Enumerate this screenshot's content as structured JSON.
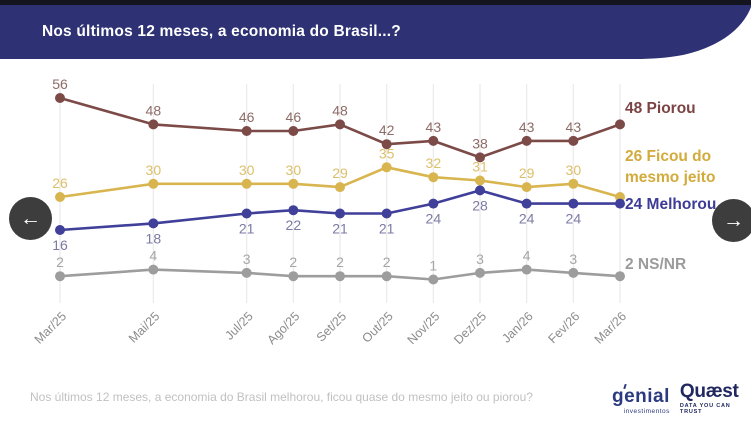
{
  "header": {
    "title": "Nos últimos 12 meses, a economia do Brasil...?"
  },
  "nav": {
    "prev_label": "←",
    "next_label": "→"
  },
  "footer": {
    "question": "Nos últimos 12 meses, a economia do Brasil melhorou, ficou quase do mesmo jeito ou piorou?",
    "logos": {
      "genial": {
        "name": "genial",
        "sub": "investimentos"
      },
      "quaest": {
        "name": "Quæst",
        "sub": "DATA YOU CAN TRUST"
      }
    }
  },
  "colors": {
    "banner": "#2e3274",
    "top_bar": "#14141f",
    "gridline": "#ececec",
    "axis_label": "#8c8c8c",
    "nav_button": "#3d3d3d",
    "footer_text": "#c1c1c1",
    "logo_navy": "#2c3a80"
  },
  "chart_data": {
    "type": "line",
    "title": "Nos últimos 12 meses, a economia do Brasil...?",
    "x_tick_labels": [
      "Mar/25",
      "Mai/25",
      "Jul/25",
      "Ago/25",
      "Set/25",
      "Out/25",
      "Nov/25",
      "Dez/25",
      "Jan/26",
      "Fev/26",
      "Mar/26"
    ],
    "x_month_offsets": [
      0,
      2,
      4,
      5,
      6,
      7,
      8,
      9,
      10,
      11,
      12
    ],
    "ylim": [
      0,
      60
    ],
    "grid": "vertical-only",
    "legend_position": "right-of-last-point",
    "series": [
      {
        "name": "Piorou",
        "color": "#7c4a47",
        "label_color": "#8d6b66",
        "legend_color": "#7b4343",
        "values": [
          56,
          48,
          46,
          46,
          48,
          42,
          43,
          38,
          43,
          43,
          48
        ],
        "value_label_position": "above",
        "legend_lines": [
          "48 Piorou"
        ]
      },
      {
        "name": "Ficou do mesmo jeito",
        "color": "#d8b54f",
        "label_color": "#ddc06a",
        "legend_color": "#d2ab3c",
        "values": [
          26,
          30,
          30,
          30,
          29,
          35,
          32,
          31,
          29,
          30,
          26
        ],
        "value_label_position": "above",
        "legend_lines": [
          "26 Ficou do",
          "mesmo jeito"
        ]
      },
      {
        "name": "Melhorou",
        "color": "#403f99",
        "label_color": "#7c7aa4",
        "legend_color": "#3d3b96",
        "values": [
          16,
          18,
          21,
          22,
          21,
          21,
          24,
          28,
          24,
          24,
          24
        ],
        "value_label_position": "below",
        "legend_lines": [
          "24 Melhorou"
        ]
      },
      {
        "name": "NS/NR",
        "color": "#9d9d9d",
        "label_color": "#a5a5a5",
        "legend_color": "#9b9b9b",
        "values": [
          2,
          4,
          3,
          2,
          2,
          2,
          1,
          3,
          4,
          3,
          2
        ],
        "value_label_position": "above",
        "legend_lines": [
          "2 NS/NR"
        ]
      }
    ]
  }
}
